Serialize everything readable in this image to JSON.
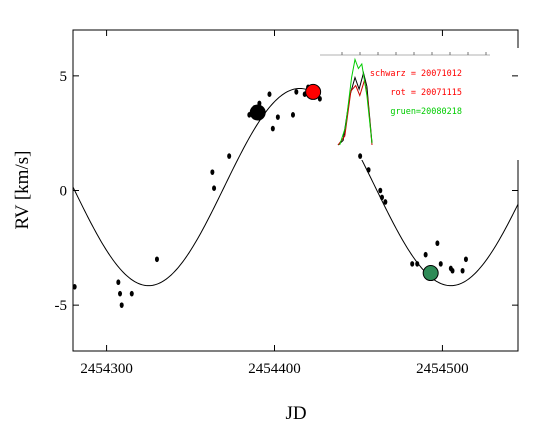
{
  "chart_data": {
    "type": "scatter",
    "title": "",
    "xlabel": "JD",
    "ylabel": "RV  [km/s]",
    "xlim": [
      2454280,
      2454545
    ],
    "ylim": [
      -7,
      7
    ],
    "xticks": [
      2454300,
      2454400,
      2454500
    ],
    "xtick_labels": [
      "2454300",
      "2454400",
      "2454500"
    ],
    "yticks": [
      5,
      0,
      -5
    ],
    "ytick_labels": [
      "5",
      "0",
      "-5"
    ],
    "grid": false,
    "series": [
      {
        "marker": "small-dot",
        "color": "#000000",
        "x": [
          2454281,
          2454307,
          2454308,
          2454309,
          2454315,
          2454330,
          2454363,
          2454364,
          2454373,
          2454385,
          2454388,
          2454389,
          2454391,
          2454393,
          2454397,
          2454399,
          2454402,
          2454411,
          2454413,
          2454418,
          2454420,
          2454425,
          2454427,
          2454451,
          2454456,
          2454463,
          2454464,
          2454466,
          2454482,
          2454485,
          2454490,
          2454493,
          2454497,
          2454499,
          2454505,
          2454506,
          2454512,
          2454514
        ],
        "y": [
          -4.2,
          -4.0,
          -4.5,
          -5.0,
          -4.5,
          -3.0,
          0.8,
          0.1,
          1.5,
          3.3,
          3.6,
          3.3,
          3.8,
          3.3,
          4.2,
          2.7,
          3.2,
          3.3,
          4.3,
          4.2,
          4.5,
          4.3,
          4.0,
          1.5,
          0.9,
          0.0,
          -0.3,
          -0.5,
          -3.2,
          -3.2,
          -2.8,
          -3.4,
          -2.3,
          -3.2,
          -3.4,
          -3.5,
          -3.5,
          -3.0
        ]
      },
      {
        "marker": "big-dot",
        "color": "#000000",
        "x": [
          2454390
        ],
        "y": [
          3.4
        ]
      },
      {
        "marker": "big-dot",
        "color": "#ff0000",
        "x": [
          2454423
        ],
        "y": [
          4.3
        ]
      },
      {
        "marker": "big-dot",
        "color": "#2e8b57",
        "x": [
          2454493
        ],
        "y": [
          -3.6
        ]
      }
    ],
    "model_curve": {
      "type": "line",
      "color": "#000000",
      "offset": 0.15,
      "amplitude": 4.3,
      "period_days": 180,
      "phase_ref_x": 2454415
    },
    "inset": {
      "entries": [
        {
          "label": "schwarz = 20071012",
          "color": "#ff0000"
        },
        {
          "label": "rot = 20071115",
          "color": "#ff0000"
        },
        {
          "label": "gruen=20080218",
          "color": "#00cc00"
        }
      ],
      "profiles": [
        {
          "color": "#000000",
          "points": [
            [
              0,
              0
            ],
            [
              0.15,
              0.05
            ],
            [
              0.35,
              0.55
            ],
            [
              0.5,
              0.75
            ],
            [
              0.62,
              0.62
            ],
            [
              0.75,
              0.8
            ],
            [
              0.85,
              0.65
            ],
            [
              1,
              0.02
            ]
          ]
        },
        {
          "color": "#cc0000",
          "points": [
            [
              0,
              0
            ],
            [
              0.2,
              0.1
            ],
            [
              0.38,
              0.6
            ],
            [
              0.52,
              0.66
            ],
            [
              0.64,
              0.55
            ],
            [
              0.78,
              0.72
            ],
            [
              0.88,
              0.5
            ],
            [
              1,
              0
            ]
          ]
        },
        {
          "color": "#00cc00",
          "points": [
            [
              0.05,
              0
            ],
            [
              0.22,
              0.2
            ],
            [
              0.4,
              0.75
            ],
            [
              0.5,
              0.95
            ],
            [
              0.6,
              0.85
            ],
            [
              0.7,
              0.9
            ],
            [
              0.85,
              0.55
            ],
            [
              1,
              0.02
            ]
          ]
        }
      ]
    }
  }
}
